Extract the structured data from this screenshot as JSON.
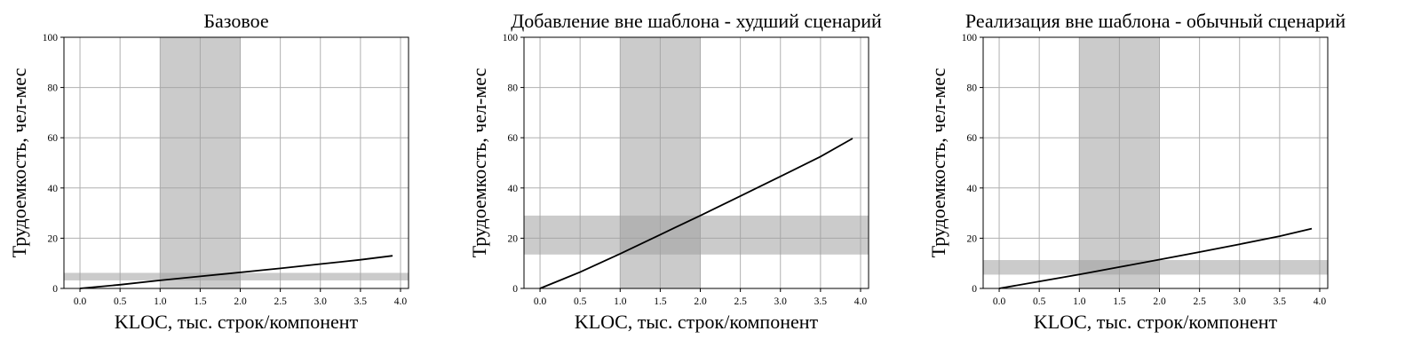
{
  "chart_data": [
    {
      "type": "line",
      "title": "Базовое",
      "xlabel": "KLOC, тыс. строк/компонент",
      "ylabel": "Трудоемкость, чел-мес",
      "xlim": [
        -0.2,
        4.1
      ],
      "ylim": [
        0,
        100
      ],
      "xticks": [
        "0.0",
        "0.5",
        "1.0",
        "1.5",
        "2.0",
        "2.5",
        "3.0",
        "3.5",
        "4.0"
      ],
      "yticks": [
        "0",
        "20",
        "40",
        "60",
        "80",
        "100"
      ],
      "grid": true,
      "x_band": [
        1.0,
        2.0
      ],
      "y_band": [
        3.2,
        6.2
      ],
      "series": [
        {
          "x": [
            0.0,
            0.5,
            1.0,
            1.5,
            2.0,
            2.5,
            3.0,
            3.5,
            3.9
          ],
          "y": [
            0.0,
            1.5,
            3.2,
            4.8,
            6.4,
            8.0,
            9.7,
            11.4,
            13.0
          ]
        }
      ]
    },
    {
      "type": "line",
      "title": "Добавление вне шаблона - худший сценарий",
      "xlabel": "KLOC, тыс. строк/компонент",
      "ylabel": "Трудоемкость, чел-мес",
      "xlim": [
        -0.2,
        4.1
      ],
      "ylim": [
        0,
        100
      ],
      "xticks": [
        "0.0",
        "0.5",
        "1.0",
        "1.5",
        "2.0",
        "2.5",
        "3.0",
        "3.5",
        "4.0"
      ],
      "yticks": [
        "0",
        "20",
        "40",
        "60",
        "80",
        "100"
      ],
      "grid": true,
      "x_band": [
        1.0,
        2.0
      ],
      "y_band": [
        13.5,
        29.0
      ],
      "series": [
        {
          "x": [
            0.0,
            0.5,
            1.0,
            1.5,
            2.0,
            2.5,
            3.0,
            3.5,
            3.9
          ],
          "y": [
            0.0,
            6.5,
            13.8,
            21.4,
            29.0,
            36.8,
            44.6,
            52.5,
            59.7
          ]
        }
      ]
    },
    {
      "type": "line",
      "title": "Реализация вне шаблона - обычный сценарий",
      "xlabel": "KLOC, тыс. строк/компонент",
      "ylabel": "Трудоемкость, чел-мес",
      "xlim": [
        -0.2,
        4.1
      ],
      "ylim": [
        0,
        100
      ],
      "xticks": [
        "0.0",
        "0.5",
        "1.0",
        "1.5",
        "2.0",
        "2.5",
        "3.0",
        "3.5",
        "4.0"
      ],
      "yticks": [
        "0",
        "20",
        "40",
        "60",
        "80",
        "100"
      ],
      "grid": true,
      "x_band": [
        1.0,
        2.0
      ],
      "y_band": [
        5.5,
        11.3
      ],
      "series": [
        {
          "x": [
            0.0,
            0.5,
            1.0,
            1.5,
            2.0,
            2.5,
            3.0,
            3.5,
            3.9
          ],
          "y": [
            0.0,
            2.8,
            5.6,
            8.5,
            11.5,
            14.5,
            17.6,
            20.8,
            23.8
          ]
        }
      ]
    }
  ]
}
